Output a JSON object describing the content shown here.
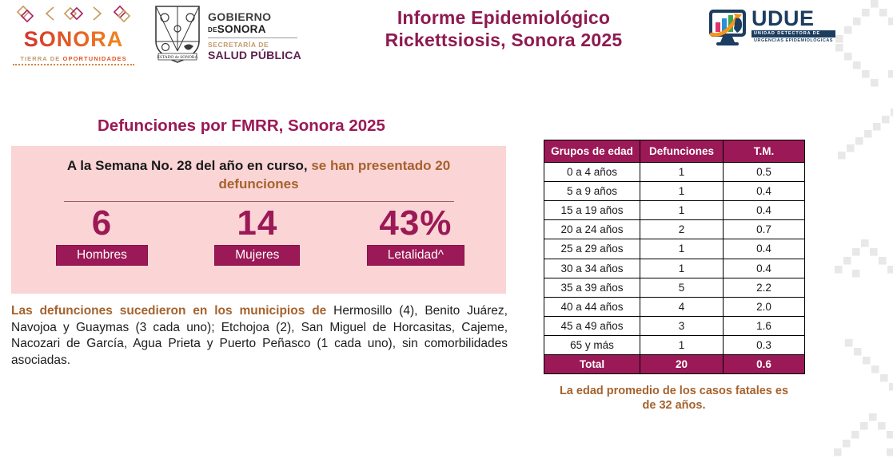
{
  "colors": {
    "magenta": "#9b1956",
    "title_magenta": "#8e1a51",
    "pink": "#fbd4d5",
    "brown": "#a5622d",
    "navy": "#1c3d5f",
    "orange": "#f7941e"
  },
  "header": {
    "sonora_logo": {
      "title": "SONORA",
      "tagline_part1": "TIERRA DE ",
      "tagline_part2": "OPORTUNIDADES"
    },
    "gobierno_logo": {
      "shield_caption": "ESTADO de SONORA",
      "line1": "GOBIERNO",
      "line2_small": "DE",
      "line2": "SONORA",
      "line3": "SECRETARÍA DE",
      "line4": "SALUD PÚBLICA"
    },
    "title_line1": "Informe Epidemiológico",
    "title_line2": "Rickettsiosis, Sonora 2025",
    "udue_logo": {
      "acronym": "UDUE",
      "sub1": "UNIDAD DETECTORA DE",
      "sub2": "URGENCIAS EPIDEMIOLÓGICAS"
    }
  },
  "section": {
    "heading": "Defunciones por FMRR, Sonora 2025"
  },
  "summary": {
    "part_black": "A la Semana No. 28 del año en curso, ",
    "part_brown": "se han presentado 20 defunciones"
  },
  "stats": [
    {
      "value": "6",
      "label": "Hombres"
    },
    {
      "value": "14",
      "label": "Mujeres"
    },
    {
      "value": "43%",
      "label": "Letalidad^"
    }
  ],
  "paragraph": {
    "lead": "Las defunciones sucedieron en los municipios de",
    "rest": " Hermosillo (4), Benito Juárez, Navojoa y Guaymas (3 cada uno); Etchojoa (2), San Miguel de Horcasitas, Cajeme, Nacozari de García, Agua Prieta y Puerto Peñasco (1 cada uno), sin comorbilidades asociadas."
  },
  "table": {
    "headers": [
      "Grupos de edad",
      "Defunciones",
      "T.M."
    ],
    "rows": [
      [
        "0 a 4 años",
        "1",
        "0.5"
      ],
      [
        "5 a 9 años",
        "1",
        "0.4"
      ],
      [
        "15 a 19 años",
        "1",
        "0.4"
      ],
      [
        "20 a 24 años",
        "2",
        "0.7"
      ],
      [
        "25 a 29 años",
        "1",
        "0.4"
      ],
      [
        "30 a 34 años",
        "1",
        "0.4"
      ],
      [
        "35 a 39 años",
        "5",
        "2.2"
      ],
      [
        "40 a 44 años",
        "4",
        "2.0"
      ],
      [
        "45 a 49 años",
        "3",
        "1.6"
      ],
      [
        "65 y más",
        "1",
        "0.3"
      ]
    ],
    "total": [
      "Total",
      "20",
      "0.6"
    ]
  },
  "note": "La edad promedio de los casos fatales es de 32 años."
}
